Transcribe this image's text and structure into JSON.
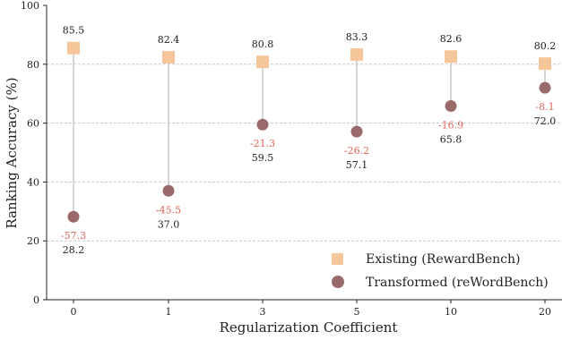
{
  "chart_data": {
    "type": "scatter",
    "title": "",
    "xlabel": "Regularization Coefficient",
    "ylabel": "Ranking Accuracy (%)",
    "categories": [
      "0",
      "1",
      "3",
      "5",
      "10",
      "20"
    ],
    "ylim": [
      0,
      100
    ],
    "yticks": [
      "0",
      "20",
      "40",
      "60",
      "80",
      "100"
    ],
    "grid": "horizontal dashed at 20, 40, 60, 80",
    "legend_position": "bottom-right",
    "series": [
      {
        "name": "Existing (RewardBench)",
        "marker": "square",
        "color": "#f5c69a",
        "values": [
          85.5,
          82.4,
          80.8,
          83.3,
          82.6,
          80.2
        ],
        "labels": [
          "85.5",
          "82.4",
          "80.8",
          "83.3",
          "82.6",
          "80.2"
        ]
      },
      {
        "name": "Transformed (reWordBench)",
        "marker": "circle",
        "color": "#9a6a6b",
        "values": [
          28.2,
          37.0,
          59.5,
          57.1,
          65.8,
          72.0
        ],
        "labels": [
          "28.2",
          "37.0",
          "59.5",
          "57.1",
          "65.8",
          "72.0"
        ]
      }
    ],
    "deltas": [
      "-57.3",
      "-45.5",
      "-21.3",
      "-26.2",
      "-16.9",
      "-8.1"
    ],
    "colors": {
      "delta_text": "#e0655a",
      "connector": "#c8c8c8",
      "grid": "#c8c8c8",
      "axis": "#222222"
    }
  }
}
